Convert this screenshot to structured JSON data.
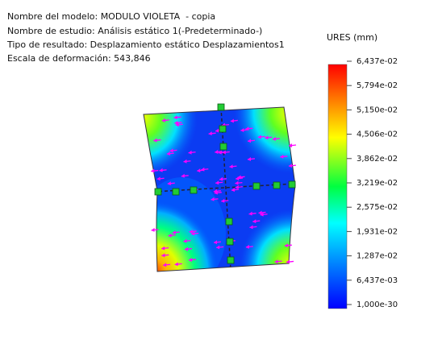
{
  "header": {
    "lines": [
      "Nombre del modelo: MODULO VIOLETA  - copia",
      "Nombre de estudio: Análisis estático 1(-Predeterminado-)",
      "Tipo de resultado: Desplazamiento estático Desplazamientos1",
      "Escala de deformación: 543,846"
    ]
  },
  "legend": {
    "title": "URES (mm)",
    "labels": [
      "6,437e-02",
      "5,794e-02",
      "5,150e-02",
      "4,506e-02",
      "3,862e-02",
      "3,219e-02",
      "2,575e-02",
      "1,931e-02",
      "1,287e-02",
      "6,437e-03",
      "1,000e-30"
    ]
  }
}
